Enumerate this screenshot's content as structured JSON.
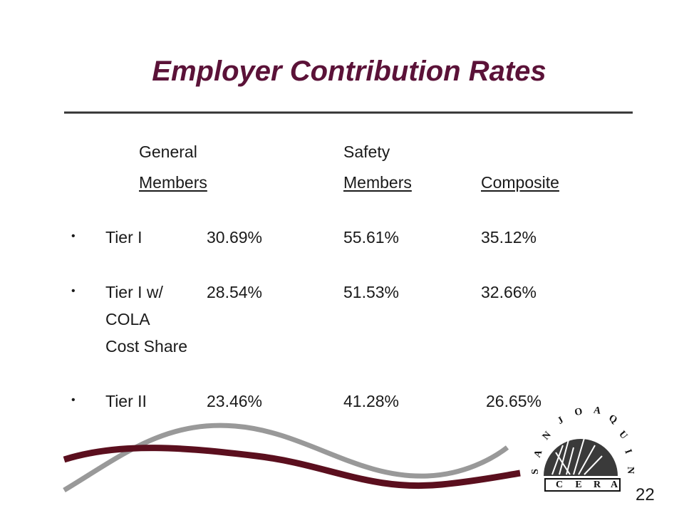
{
  "title": "Employer Contribution Rates",
  "table": {
    "header": {
      "row1": [
        "General",
        "Safety"
      ],
      "row2": [
        "Members",
        "Members",
        "Composite"
      ]
    },
    "rows": [
      {
        "label": [
          "Tier I"
        ],
        "values": [
          "30.69%",
          "55.61%",
          "35.12%"
        ]
      },
      {
        "label": [
          "Tier I w/",
          "COLA",
          "Cost Share"
        ],
        "values": [
          "28.54%",
          "51.53%",
          "32.66%"
        ]
      },
      {
        "label": [
          "Tier II"
        ],
        "values": [
          "23.46%",
          "41.28%",
          "26.65%"
        ]
      }
    ]
  },
  "logo": {
    "arc_letters": [
      "S",
      "A",
      "N",
      "J",
      "O",
      "A",
      "Q",
      "U",
      "I",
      "N"
    ],
    "band_letters": [
      "C",
      "E",
      "R",
      "A"
    ]
  },
  "page_number": "22"
}
